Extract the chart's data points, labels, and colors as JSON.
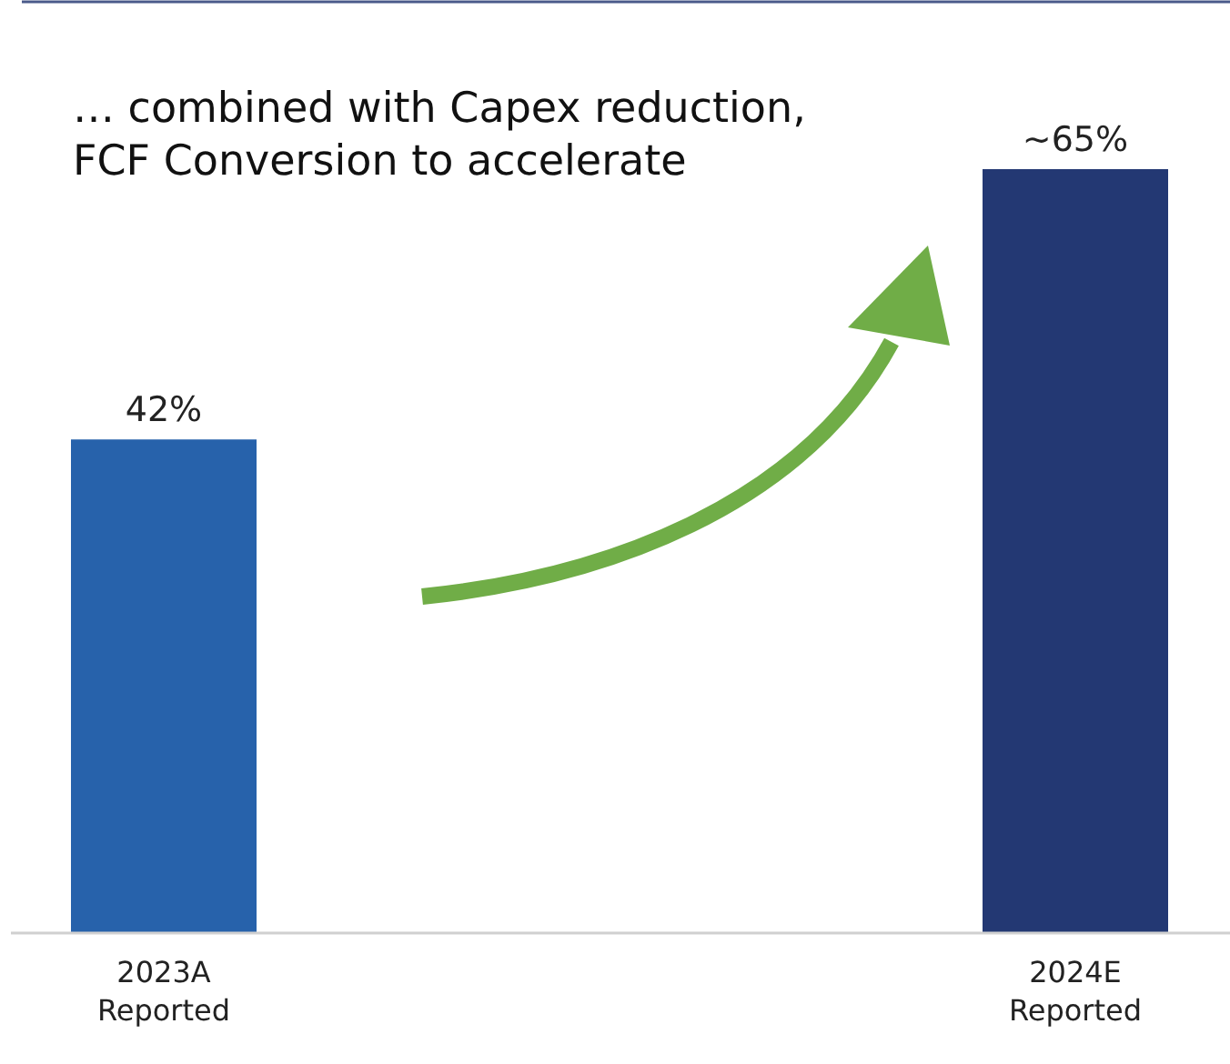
{
  "chart_data": {
    "type": "bar",
    "title": "… combined with Capex reduction,\nFCF Conversion to accelerate",
    "categories": [
      "2023A\nReported",
      "2024E\nReported"
    ],
    "values": [
      42,
      65
    ],
    "colors": [
      "#2762ab",
      "#233873"
    ],
    "value_labels": [
      "42%",
      "~65%"
    ],
    "ylim": [
      0,
      65
    ]
  }
}
